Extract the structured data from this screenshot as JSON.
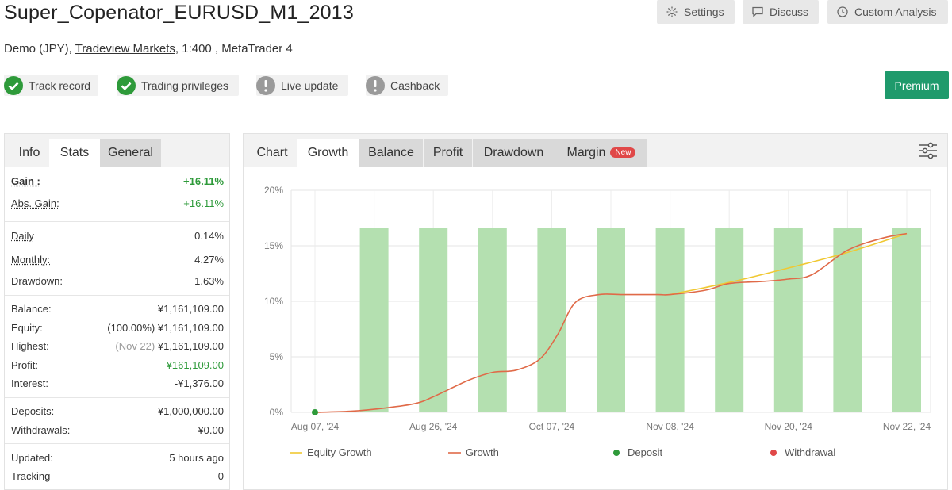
{
  "header": {
    "title": "Super_Copenator_EURUSD_M1_2013",
    "settings_label": "Settings",
    "discuss_label": "Discuss",
    "custom_analysis_label": "Custom Analysis",
    "subtitle_prefix": "Demo (JPY), ",
    "broker_link": "Tradeview Markets",
    "subtitle_suffix": ", 1:400 , MetaTrader 4"
  },
  "badges": [
    {
      "label": "Track record",
      "status": "check"
    },
    {
      "label": "Trading privileges",
      "status": "check"
    },
    {
      "label": "Live update",
      "status": "alert"
    },
    {
      "label": "Cashback",
      "status": "alert"
    }
  ],
  "premium_label": "Premium",
  "colors": {
    "check": "#2e9a3a",
    "alert": "#9a9a9a",
    "premium": "#1f9a6c",
    "bar": "#b4e0b0",
    "growth": "#e06a48",
    "equity": "#f0c832",
    "deposit": "#2e9a3a",
    "withdrawal": "#e04848"
  },
  "left_tabs": [
    "Info",
    "Stats",
    "General"
  ],
  "stats": {
    "gain_label": "Gain :",
    "gain_value": "+16.11%",
    "abs_gain_label": "Abs. Gain:",
    "abs_gain_value": "+16.11%",
    "daily_label": "Daily",
    "daily_value": "0.14%",
    "monthly_label": "Monthly:",
    "monthly_value": "4.27%",
    "drawdown_label": "Drawdown:",
    "drawdown_value": "1.63%",
    "balance_label": "Balance:",
    "balance_value": "¥1,161,109.00",
    "equity_label": "Equity:",
    "equity_pct": "(100.00%)",
    "equity_value": "¥1,161,109.00",
    "highest_label": "Highest:",
    "highest_date": "(Nov 22)",
    "highest_value": "¥1,161,109.00",
    "profit_label": "Profit:",
    "profit_value": "¥161,109.00",
    "interest_label": "Interest:",
    "interest_value": "-¥1,376.00",
    "deposits_label": "Deposits:",
    "deposits_value": "¥1,000,000.00",
    "withdrawals_label": "Withdrawals:",
    "withdrawals_value": "¥0.00",
    "updated_label": "Updated:",
    "updated_value": "5 hours ago",
    "tracking_label": "Tracking",
    "tracking_value": "0"
  },
  "right_tabs": [
    "Chart",
    "Growth",
    "Balance",
    "Profit",
    "Drawdown",
    "Margin"
  ],
  "margin_new_badge": "New",
  "chart_data": {
    "type": "line",
    "yticks": [
      "20%",
      "15%",
      "10%",
      "5%",
      "0%"
    ],
    "ylim": [
      0,
      20
    ],
    "xticks": [
      "Aug 07, '24",
      "Aug 26, '24",
      "Oct 07, '24",
      "Nov 08, '24",
      "Nov 20, '24",
      "Nov 22, '24"
    ],
    "x": [
      0,
      0.5,
      1,
      1.5,
      2,
      2.5,
      3,
      3.5,
      4,
      4.5,
      5
    ],
    "grid": true,
    "legend_position": "bottom",
    "legend": [
      "Equity Growth",
      "Growth",
      "Deposit",
      "Withdrawal"
    ],
    "bars": {
      "name": "",
      "x": [
        0.5,
        1,
        1.5,
        2,
        2.5,
        3,
        3.5,
        4,
        4.5,
        5
      ],
      "values": [
        16.6,
        16.6,
        16.6,
        16.6,
        16.6,
        16.6,
        16.6,
        16.6,
        16.6,
        16.6
      ]
    },
    "series": [
      {
        "name": "Growth",
        "x": [
          0,
          0.3,
          0.6,
          0.85,
          1.0,
          1.3,
          1.5,
          1.7,
          1.9,
          2.05,
          2.2,
          2.4,
          2.6,
          2.9,
          3.0,
          3.3,
          3.5,
          3.8,
          4.0,
          4.2,
          4.5,
          4.8,
          5.0
        ],
        "values": [
          0,
          0.1,
          0.4,
          0.8,
          1.4,
          2.9,
          3.6,
          3.8,
          4.8,
          7.0,
          9.9,
          10.6,
          10.6,
          10.6,
          10.6,
          11.0,
          11.6,
          11.8,
          12.0,
          12.4,
          14.6,
          15.7,
          16.1
        ]
      },
      {
        "name": "Equity Growth",
        "x": [
          3.0,
          3.5,
          4.0,
          4.5,
          5.0
        ],
        "values": [
          10.6,
          11.7,
          13.0,
          14.4,
          16.1
        ]
      }
    ],
    "deposit_points": [
      {
        "x": 0,
        "y": 0
      }
    ]
  }
}
